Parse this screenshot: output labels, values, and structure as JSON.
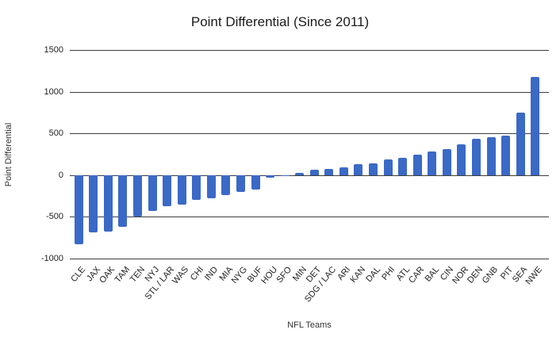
{
  "chart_data": {
    "type": "bar",
    "title": "Point Differential (Since 2011)",
    "xlabel": "NFL Teams",
    "ylabel": "Point Differential",
    "categories": [
      "CLE",
      "JAX",
      "OAK",
      "TAM",
      "TEN",
      "NYJ",
      "STL / LAR",
      "WAS",
      "CHI",
      "IND",
      "MIA",
      "NYG",
      "BUF",
      "HOU",
      "SFO",
      "MIN",
      "DET",
      "SDG / LAC",
      "ARI",
      "KAN",
      "DAL",
      "PHI",
      "ATL",
      "CAR",
      "BAL",
      "CIN",
      "NOR",
      "DEN",
      "GNB",
      "PIT",
      "SEA",
      "NWE"
    ],
    "values": [
      -825,
      -690,
      -680,
      -620,
      -500,
      -425,
      -370,
      -350,
      -300,
      -280,
      -240,
      -205,
      -170,
      -30,
      -5,
      25,
      60,
      70,
      95,
      130,
      145,
      185,
      210,
      250,
      285,
      315,
      365,
      440,
      450,
      470,
      745,
      1180
    ],
    "ylim": [
      -1000,
      1500
    ],
    "yticks": [
      1500,
      1000,
      500,
      0,
      -500,
      -1000
    ],
    "grid": true,
    "legend": false,
    "bar_color": "#3b69c6",
    "grid_color": "#3d3d3d",
    "background": "#ffffff"
  }
}
